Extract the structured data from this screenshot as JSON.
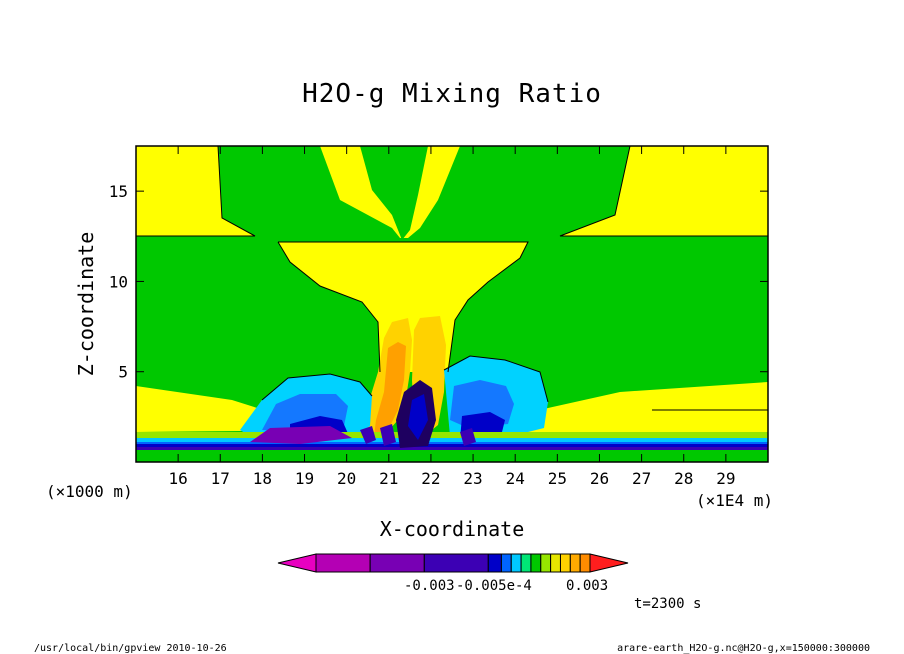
{
  "chart_data": {
    "type": "heatmap",
    "title": "H2O-g Mixing Ratio",
    "xlabel": "X-coordinate",
    "ylabel": "Z-coordinate",
    "x_unit_label": "(×1E4 m)",
    "y_unit_label": "(×1000 m)",
    "x_ticks": [
      "16",
      "17",
      "18",
      "19",
      "20",
      "21",
      "22",
      "23",
      "24",
      "25",
      "26",
      "27",
      "28",
      "29"
    ],
    "y_ticks": [
      "5",
      "10",
      "15"
    ],
    "xlim": [
      15,
      30
    ],
    "ylim": [
      0,
      17.5
    ],
    "colorbar": {
      "colors": [
        "#e800c0",
        "#b400b4",
        "#7800b4",
        "#3c00b4",
        "#0000c8",
        "#0064ff",
        "#00c8ff",
        "#00e676",
        "#00c800",
        "#96e600",
        "#e6e600",
        "#ffd200",
        "#ffaa00",
        "#ff8c00",
        "#ff1e1e"
      ],
      "tick_labels": [
        "-0.003",
        "-0.005e-4",
        "0.003"
      ]
    },
    "time_label": "t=2300 s"
  },
  "footer": {
    "left": "/usr/local/bin/gpview  2010-10-26",
    "right": "arare-earth_H2O-g.nc@H2O-g,x=150000:300000"
  }
}
